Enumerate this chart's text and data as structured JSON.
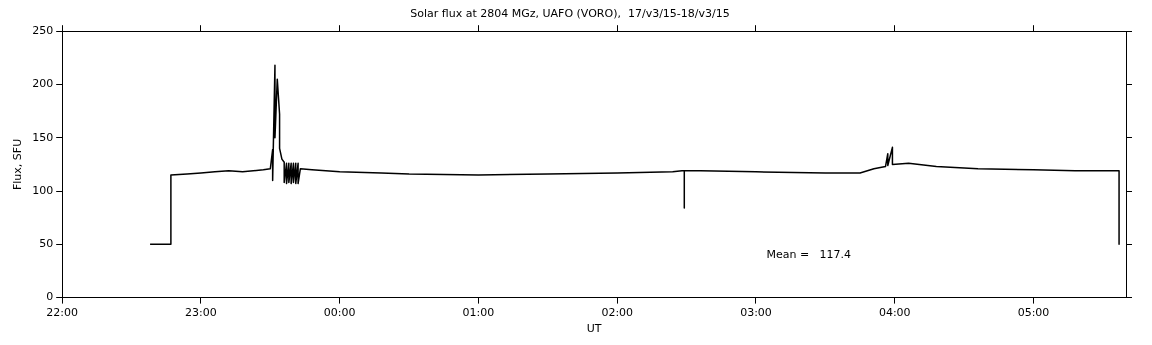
{
  "chart_data": {
    "type": "line",
    "title": "Solar flux at 2804 MGz, UAFO (VORO),  17/v3/15-18/v3/15",
    "xlabel": "UT",
    "ylabel": "Flux, SFU",
    "xlim": [
      "--03-17T22:00",
      "--03-18T05:40"
    ],
    "ylim": [
      0,
      250
    ],
    "xticks": [
      {
        "value": "--03-17T22:00",
        "label": "22:00"
      },
      {
        "value": "--03-17T23:00",
        "label": "23:00"
      },
      {
        "value": "--03-18T00:00",
        "label": "00:00"
      },
      {
        "value": "--03-18T01:00",
        "label": "01:00"
      },
      {
        "value": "--03-18T02:00",
        "label": "02:00"
      },
      {
        "value": "--03-18T03:00",
        "label": "03:00"
      },
      {
        "value": "--03-18T04:00",
        "label": "04:00"
      },
      {
        "value": "--03-18T05:00",
        "label": "05:00"
      }
    ],
    "yticks": [
      0,
      50,
      100,
      150,
      200,
      250
    ],
    "grid": false,
    "marker": "none",
    "line_style": "solid",
    "annotations": [
      "Mean =   117.4"
    ],
    "series": [
      {
        "color": "#000000",
        "x": [
          "--03-17T22:38",
          "--03-17T22:47",
          "--03-17T22:47",
          "--03-17T22:54",
          "--03-17T23:00",
          "--03-17T23:06",
          "--03-17T23:12",
          "--03-17T23:18",
          "--03-17T23:27",
          "--03-17T23:30",
          "--03-17T23:31",
          "--03-17T23:31",
          "--03-17T23:32",
          "--03-17T23:32",
          "--03-17T23:33",
          "--03-17T23:34",
          "--03-17T23:34",
          "--03-17T23:35",
          "--03-17T23:36",
          "--03-17T23:36",
          "--03-17T23:37",
          "--03-17T23:37",
          "--03-17T23:38",
          "--03-17T23:38",
          "--03-17T23:39",
          "--03-17T23:39",
          "--03-17T23:40",
          "--03-17T23:40",
          "--03-17T23:41",
          "--03-17T23:41",
          "--03-17T23:42",
          "--03-17T23:42",
          "--03-17T23:43",
          "--03-17T23:48",
          "--03-18T00:00",
          "--03-18T00:18",
          "--03-18T00:30",
          "--03-18T01:00",
          "--03-18T01:30",
          "--03-18T02:00",
          "--03-18T02:24",
          "--03-18T02:28",
          "--03-18T02:29",
          "--03-18T02:29",
          "--03-18T02:29",
          "--03-18T02:36",
          "--03-18T03:00",
          "--03-18T03:30",
          "--03-18T03:45",
          "--03-18T03:51",
          "--03-18T03:56",
          "--03-18T03:57",
          "--03-18T03:57",
          "--03-18T03:59",
          "--03-18T03:59",
          "--03-18T04:06",
          "--03-18T04:18",
          "--03-18T04:36",
          "--03-18T05:00",
          "--03-18T05:18",
          "--03-18T05:37",
          "--03-18T05:37"
        ],
        "values": [
          50,
          50,
          115,
          116,
          117,
          118,
          119,
          118,
          120,
          121,
          139,
          110,
          218,
          150,
          205,
          172,
          140,
          130,
          127,
          108,
          126,
          107,
          126,
          108,
          126,
          107,
          126,
          108,
          126,
          107,
          126,
          107,
          121,
          120,
          118,
          117,
          116,
          115,
          116,
          117,
          118,
          119,
          119,
          84,
          119,
          119,
          118,
          117,
          117,
          121,
          123,
          135,
          124,
          141,
          125,
          126,
          123,
          121,
          120,
          119,
          119,
          50
        ]
      }
    ]
  }
}
